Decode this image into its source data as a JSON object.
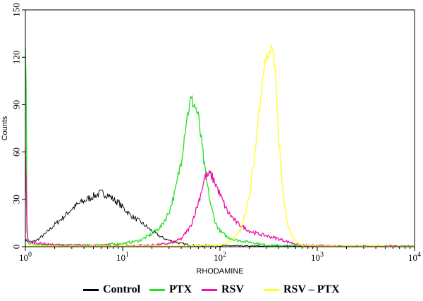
{
  "chart_data": {
    "type": "line",
    "xlabel": "RHODAMINE",
    "ylabel": "Counts",
    "x_scale": "log",
    "xlim": [
      1,
      10000
    ],
    "ylim": [
      0,
      150
    ],
    "x_ticks": [
      {
        "value": 1,
        "base": "10",
        "exp": "0"
      },
      {
        "value": 10,
        "base": "10",
        "exp": "1"
      },
      {
        "value": 100,
        "base": "10",
        "exp": "2"
      },
      {
        "value": 1000,
        "base": "10",
        "exp": "3"
      },
      {
        "value": 10000,
        "base": "10",
        "exp": "4"
      }
    ],
    "y_ticks": [
      "0",
      "30",
      "60",
      "90",
      "120",
      "150"
    ],
    "legend_position": "bottom",
    "series": [
      {
        "name": "Control",
        "color": "#000000",
        "x": [
          1,
          1.15,
          1.3,
          1.6,
          2,
          2.5,
          3,
          3.5,
          4,
          5,
          6,
          7,
          8,
          9,
          10,
          12,
          15,
          20,
          25,
          30,
          40,
          50,
          70,
          100,
          200,
          1000,
          10000
        ],
        "y": [
          4,
          3,
          4,
          8,
          14,
          19,
          24,
          27,
          29,
          32,
          34,
          33,
          30,
          28,
          25,
          20,
          16,
          10,
          6,
          4,
          2,
          1,
          0.5,
          0.3,
          0,
          0,
          0
        ]
      },
      {
        "name": "PTX",
        "color": "#22e022",
        "x": [
          1,
          1.02,
          1.04,
          1.1,
          2,
          5,
          10,
          15,
          20,
          25,
          30,
          35,
          40,
          45,
          50,
          55,
          60,
          65,
          70,
          80,
          90,
          100,
          120,
          150,
          200,
          300,
          1000,
          10000
        ],
        "y": [
          125,
          100,
          4,
          2,
          1,
          1,
          2,
          4,
          8,
          13,
          22,
          36,
          55,
          80,
          93,
          90,
          82,
          65,
          48,
          27,
          15,
          10,
          6,
          4,
          3,
          1,
          0,
          0
        ]
      },
      {
        "name": "RSV",
        "color": "#ee11aa",
        "x": [
          1,
          1.02,
          1.04,
          1.1,
          2,
          10,
          20,
          30,
          40,
          50,
          60,
          70,
          80,
          90,
          100,
          120,
          150,
          200,
          250,
          300,
          400,
          500,
          700,
          1000,
          1500,
          10000
        ],
        "y": [
          65,
          40,
          6,
          3,
          1,
          0.5,
          1,
          2,
          5,
          13,
          28,
          44,
          46,
          40,
          33,
          22,
          15,
          10,
          8,
          7,
          5,
          3,
          1,
          0.5,
          0,
          0
        ]
      },
      {
        "name": "RSV – PTX",
        "color": "#ffff22",
        "x": [
          1,
          50,
          100,
          130,
          160,
          200,
          230,
          260,
          280,
          300,
          320,
          340,
          360,
          380,
          400,
          450,
          500,
          600,
          700,
          1000,
          10000
        ],
        "y": [
          0,
          0,
          1,
          3,
          10,
          30,
          60,
          95,
          112,
          120,
          123,
          125,
          120,
          100,
          70,
          30,
          12,
          3,
          1,
          0,
          0
        ]
      }
    ]
  }
}
